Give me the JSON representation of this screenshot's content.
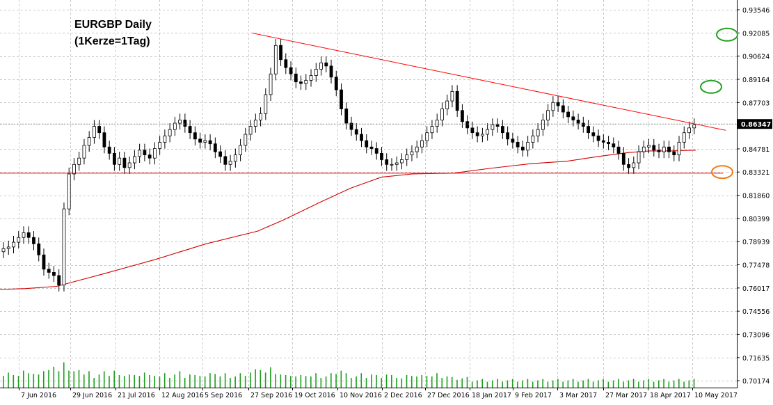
{
  "chart_data": {
    "type": "candlestick",
    "title": "EURGBP Daily",
    "subtitle": "(1Kerze=1Tag)",
    "ylim": [
      0.6974,
      0.9416
    ],
    "price_ticks": [
      "0.93546",
      "0.92085",
      "0.90624",
      "0.89164",
      "0.87703",
      "0.86347",
      "0.84781",
      "0.83321",
      "0.81860",
      "0.80399",
      "0.78939",
      "0.77478",
      "0.76017",
      "0.74556",
      "0.73096",
      "0.71635",
      "0.70174"
    ],
    "current_price": "0.86347",
    "date_labels": [
      "7 Jun 2016",
      "29 Jun 2016",
      "21 Jul 2016",
      "12 Aug 2016",
      "5 Sep 2016",
      "27 Sep 2016",
      "19 Oct 2016",
      "10 Nov 2016",
      "2 Dec 2016",
      "27 Dec 2016",
      "18 Jan 2017",
      "9 Feb 2017",
      "3 Mar 2017",
      "27 Mar 2017",
      "18 Apr 2017",
      "10 May 2017"
    ],
    "closes": [
      0.785,
      0.786,
      0.789,
      0.792,
      0.795,
      0.792,
      0.788,
      0.781,
      0.772,
      0.77,
      0.768,
      0.762,
      0.81,
      0.832,
      0.838,
      0.842,
      0.85,
      0.855,
      0.862,
      0.858,
      0.849,
      0.845,
      0.838,
      0.842,
      0.836,
      0.839,
      0.843,
      0.847,
      0.844,
      0.842,
      0.848,
      0.852,
      0.856,
      0.86,
      0.864,
      0.866,
      0.862,
      0.858,
      0.854,
      0.852,
      0.853,
      0.851,
      0.846,
      0.843,
      0.838,
      0.84,
      0.844,
      0.85,
      0.857,
      0.862,
      0.866,
      0.87,
      0.882,
      0.895,
      0.913,
      0.904,
      0.899,
      0.895,
      0.89,
      0.889,
      0.891,
      0.894,
      0.898,
      0.902,
      0.9,
      0.893,
      0.885,
      0.873,
      0.864,
      0.86,
      0.857,
      0.853,
      0.849,
      0.848,
      0.845,
      0.841,
      0.838,
      0.838,
      0.839,
      0.841,
      0.844,
      0.846,
      0.849,
      0.853,
      0.858,
      0.862,
      0.866,
      0.873,
      0.878,
      0.884,
      0.872,
      0.865,
      0.861,
      0.858,
      0.856,
      0.857,
      0.86,
      0.863,
      0.862,
      0.858,
      0.854,
      0.852,
      0.849,
      0.847,
      0.852,
      0.856,
      0.86,
      0.866,
      0.872,
      0.877,
      0.875,
      0.871,
      0.868,
      0.866,
      0.864,
      0.862,
      0.858,
      0.856,
      0.853,
      0.852,
      0.851,
      0.849,
      0.845,
      0.838,
      0.836,
      0.839,
      0.846,
      0.849,
      0.85,
      0.847,
      0.846,
      0.849,
      0.846,
      0.844,
      0.852,
      0.858,
      0.861,
      0.863
    ],
    "ma_points": [
      [
        0,
        0.7592
      ],
      [
        5,
        0.7598
      ],
      [
        11,
        0.7612
      ],
      [
        20,
        0.769
      ],
      [
        30,
        0.778
      ],
      [
        40,
        0.788
      ],
      [
        50,
        0.796
      ],
      [
        55,
        0.803
      ],
      [
        62,
        0.814
      ],
      [
        68,
        0.823
      ],
      [
        74,
        0.83
      ],
      [
        80,
        0.832
      ],
      [
        88,
        0.8325
      ],
      [
        95,
        0.8355
      ],
      [
        103,
        0.8385
      ],
      [
        110,
        0.84
      ],
      [
        116,
        0.843
      ],
      [
        122,
        0.8455
      ],
      [
        126,
        0.8465
      ],
      [
        130,
        0.8465
      ],
      [
        135,
        0.847
      ]
    ],
    "annotations": {
      "resistance_line": {
        "x0": 0,
        "x1": 1039,
        "price": 0.8325
      },
      "trendline": {
        "x0": 362,
        "p0": 0.9208,
        "x1": 1043,
        "p1": 0.8595
      },
      "circles": [
        {
          "color": "green",
          "cx": 1045,
          "price": 0.9198
        },
        {
          "color": "green",
          "cx": 1022,
          "price": 0.8869
        },
        {
          "color": "orange",
          "cx": 1038,
          "price": 0.8332
        }
      ]
    },
    "colors": {
      "candle": "#000000",
      "up_fill": "#ffffff",
      "ma": "#d00000",
      "trend": "#ff0000",
      "volume": "#1e9e1e",
      "green_circle": "#22a022",
      "orange_circle": "#f07a1a"
    },
    "volume": [
      0.6,
      0.7,
      0.5,
      0.6,
      0.8,
      0.6,
      0.7,
      0.6,
      0.7,
      0.9,
      1.0,
      0.7,
      1.3,
      0.8,
      0.7,
      0.9,
      0.6,
      0.7,
      0.5,
      0.6,
      0.7,
      0.6,
      0.8,
      0.5,
      0.6,
      0.6,
      0.5,
      0.6,
      0.7,
      0.5,
      0.6,
      0.5,
      0.6,
      0.5,
      0.6,
      0.7,
      0.5,
      0.6,
      0.5,
      0.6,
      0.5,
      0.6,
      0.7,
      0.5,
      0.6,
      0.5,
      0.5,
      0.6,
      0.6,
      0.7,
      0.8,
      0.9,
      0.7,
      0.9,
      0.7,
      0.6,
      0.5,
      0.6,
      0.5,
      0.5,
      0.6,
      0.5,
      0.6,
      0.5,
      0.5,
      0.6,
      0.7,
      0.8,
      0.6,
      0.5,
      0.5,
      0.6,
      0.5,
      0.6,
      0.5,
      0.5,
      0.6,
      0.5,
      0.5,
      0.4,
      0.5,
      0.6,
      0.5,
      0.5,
      0.6,
      0.5,
      0.6,
      0.5,
      0.5,
      0.4,
      0.4,
      0.4,
      0.4,
      0.3,
      0.3,
      0.3,
      0.3,
      0.3,
      0.3,
      0.3,
      0.3,
      0.3,
      0.3,
      0.3,
      0.3,
      0.3,
      0.3,
      0.3,
      0.3,
      0.3,
      0.3,
      0.3,
      0.3,
      0.3,
      0.3,
      0.3,
      0.3,
      0.3,
      0.3,
      0.3,
      0.3,
      0.3,
      0.3,
      0.3,
      0.3,
      0.3,
      0.3,
      0.3,
      0.3,
      0.3,
      0.3,
      0.3,
      0.3,
      0.3,
      0.3,
      0.3,
      0.3,
      0.3
    ]
  }
}
